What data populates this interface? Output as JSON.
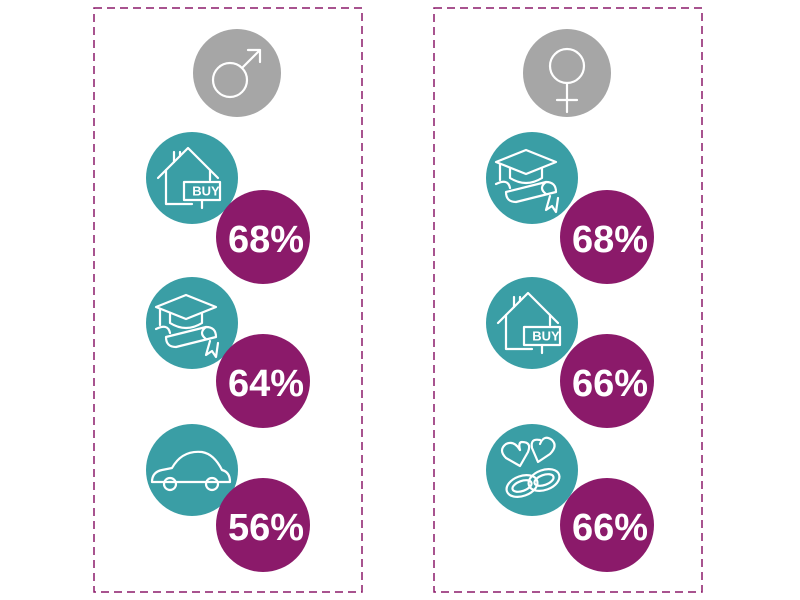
{
  "panels": [
    {
      "items": [
        {
          "icon_text": "BUY",
          "value": "68%"
        },
        {
          "value": "64%"
        },
        {
          "value": "56%"
        }
      ]
    },
    {
      "items": [
        {
          "value": "68%"
        },
        {
          "icon_text": "BUY",
          "value": "66%"
        },
        {
          "value": "66%"
        }
      ]
    }
  ]
}
